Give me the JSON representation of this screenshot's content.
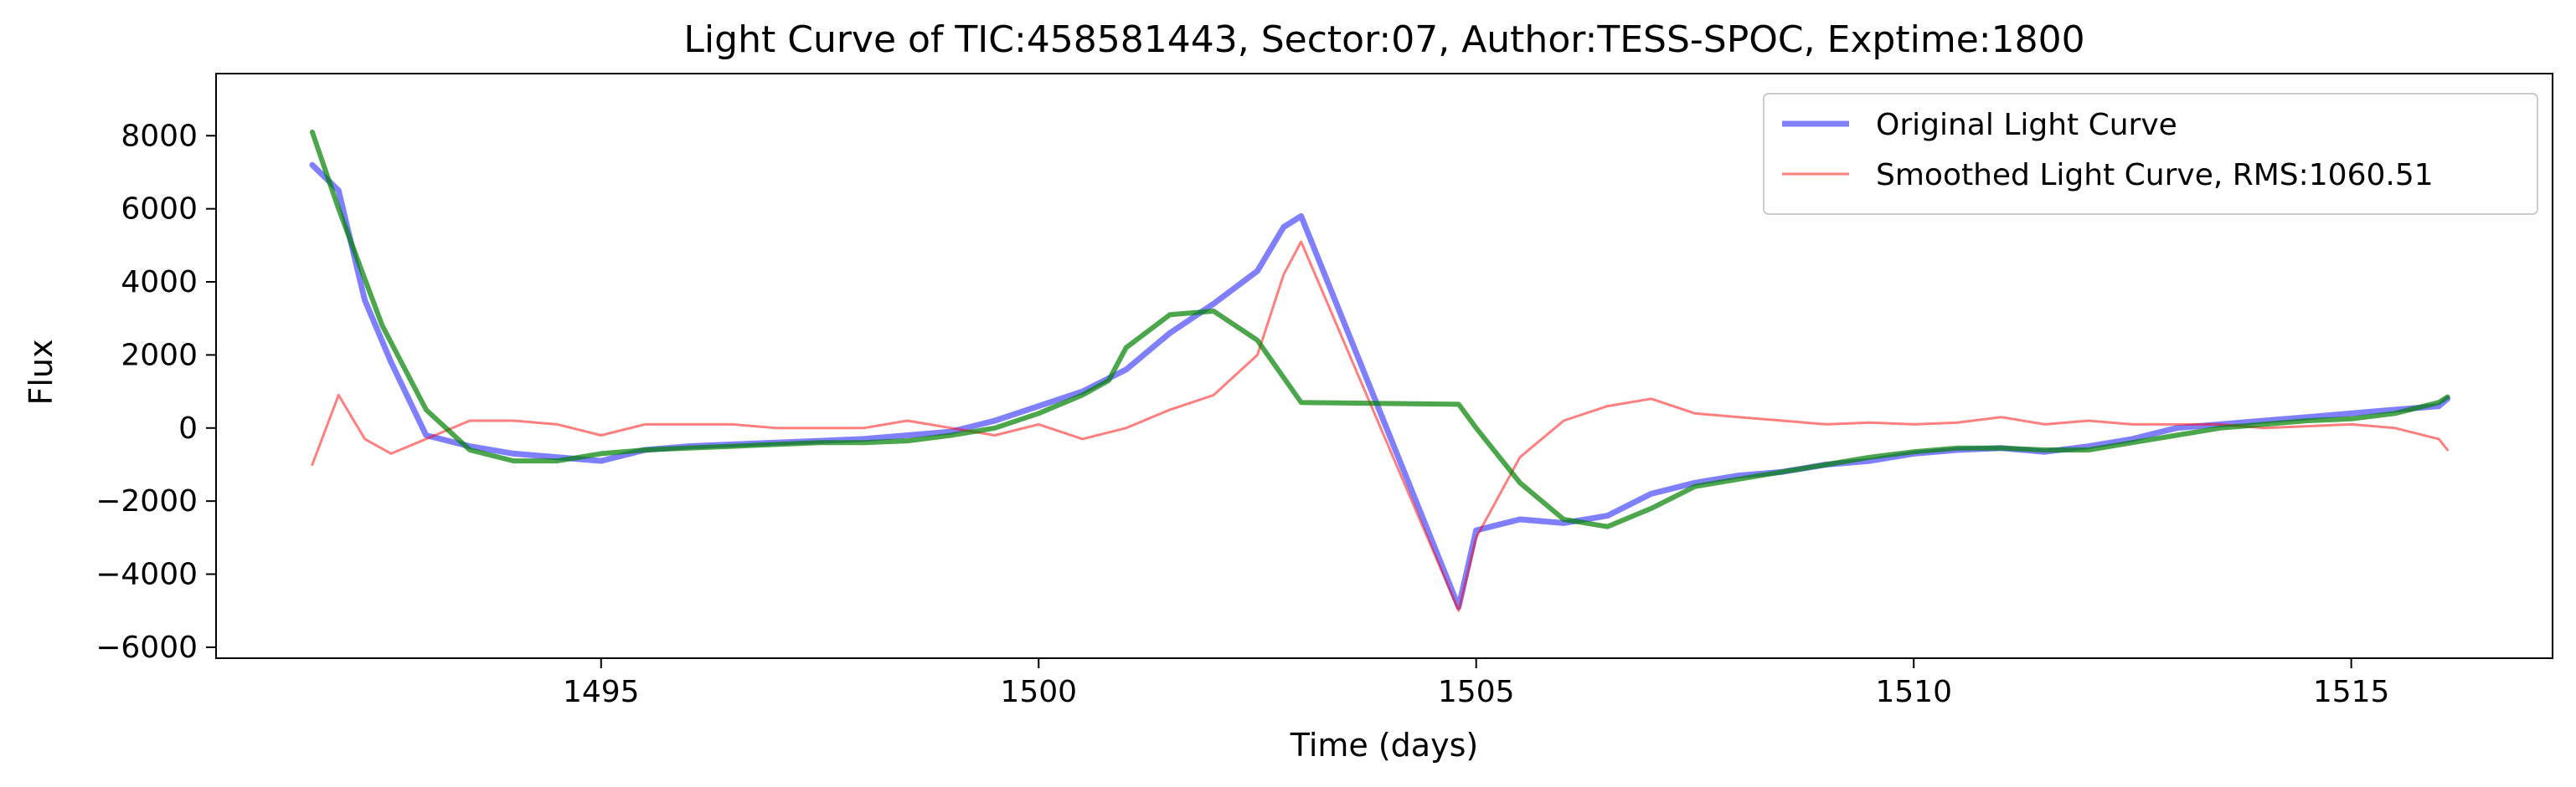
{
  "chart_data": {
    "type": "line",
    "title": "Light Curve of TIC:458581443, Sector:07, Author:TESS-SPOC, Exptime:1800",
    "xlabel": "Time (days)",
    "ylabel": "Flux",
    "xlim": [
      1490.6,
      1517.3
    ],
    "ylim": [
      -6300,
      9700
    ],
    "x_ticks": [
      1495,
      1500,
      1505,
      1510,
      1515
    ],
    "x_tick_labels": [
      "1495",
      "1500",
      "1505",
      "1510",
      "1515"
    ],
    "y_ticks": [
      -6000,
      -4000,
      -2000,
      0,
      2000,
      4000,
      6000,
      8000
    ],
    "y_tick_labels": [
      "−6000",
      "−4000",
      "−2000",
      "0",
      "2000",
      "4000",
      "6000",
      "8000"
    ],
    "grid": false,
    "legend_position": "top-right",
    "series": [
      {
        "name": "Original Light Curve",
        "color": "#0000ff",
        "opacity": 0.5,
        "style": "thick",
        "x": [
          1491.7,
          1492.0,
          1492.3,
          1492.6,
          1493.0,
          1493.5,
          1494.0,
          1494.5,
          1495.0,
          1495.5,
          1496.0,
          1496.5,
          1497.0,
          1497.5,
          1498.0,
          1498.5,
          1499.0,
          1499.5,
          1500.0,
          1500.5,
          1501.0,
          1501.5,
          1502.0,
          1502.5,
          1502.8,
          1503.0,
          1504.8,
          1505.0,
          1505.5,
          1506.0,
          1506.5,
          1507.0,
          1507.5,
          1508.0,
          1508.5,
          1509.0,
          1509.5,
          1510.0,
          1510.5,
          1511.0,
          1511.5,
          1512.0,
          1512.5,
          1513.0,
          1513.5,
          1514.0,
          1514.5,
          1515.0,
          1515.5,
          1516.0,
          1516.1
        ],
        "y": [
          7200,
          6500,
          3500,
          1800,
          -200,
          -500,
          -700,
          -800,
          -900,
          -600,
          -500,
          -450,
          -400,
          -350,
          -300,
          -200,
          -100,
          200,
          600,
          1000,
          1600,
          2600,
          3400,
          4300,
          5500,
          5800,
          -4900,
          -2800,
          -2500,
          -2600,
          -2400,
          -1800,
          -1500,
          -1300,
          -1200,
          -1000,
          -900,
          -700,
          -600,
          -550,
          -650,
          -500,
          -300,
          0,
          100,
          200,
          300,
          400,
          500,
          600,
          800
        ]
      },
      {
        "name": "Smoothed Light Curve, RMS:1060.51",
        "color": "#ff0000",
        "opacity": 0.5,
        "style": "thin",
        "x": [
          1491.7,
          1492.0,
          1492.3,
          1492.6,
          1493.0,
          1493.5,
          1494.0,
          1494.5,
          1495.0,
          1495.5,
          1496.0,
          1496.5,
          1497.0,
          1497.5,
          1498.0,
          1498.5,
          1499.0,
          1499.5,
          1500.0,
          1500.5,
          1501.0,
          1501.5,
          1502.0,
          1502.5,
          1502.8,
          1503.0,
          1504.8,
          1505.0,
          1505.5,
          1506.0,
          1506.5,
          1507.0,
          1507.5,
          1508.0,
          1508.5,
          1509.0,
          1509.5,
          1510.0,
          1510.5,
          1511.0,
          1511.5,
          1512.0,
          1512.5,
          1513.0,
          1513.5,
          1514.0,
          1514.5,
          1515.0,
          1515.5,
          1516.0,
          1516.1
        ],
        "y": [
          -1000,
          900,
          -300,
          -700,
          -300,
          200,
          200,
          100,
          -200,
          100,
          100,
          100,
          0,
          0,
          0,
          200,
          0,
          -200,
          100,
          -300,
          0,
          500,
          900,
          2000,
          4200,
          5100,
          -5000,
          -3000,
          -800,
          200,
          600,
          800,
          400,
          300,
          200,
          100,
          150,
          100,
          150,
          300,
          100,
          200,
          100,
          100,
          100,
          0,
          50,
          100,
          0,
          -300,
          -600
        ]
      },
      {
        "name": "",
        "color": "#008000",
        "opacity": 0.7,
        "style": "medium",
        "x": [
          1491.7,
          1492.0,
          1492.5,
          1493.0,
          1493.5,
          1494.0,
          1494.5,
          1495.0,
          1495.5,
          1496.0,
          1496.5,
          1497.0,
          1497.5,
          1498.0,
          1498.5,
          1499.0,
          1499.5,
          1500.0,
          1500.5,
          1500.8,
          1501.0,
          1501.5,
          1502.0,
          1502.5,
          1503.0,
          1504.8,
          1505.0,
          1505.5,
          1506.0,
          1506.5,
          1507.0,
          1507.5,
          1508.0,
          1508.5,
          1509.0,
          1509.5,
          1510.0,
          1510.5,
          1511.0,
          1511.5,
          1512.0,
          1512.5,
          1513.0,
          1513.5,
          1514.0,
          1514.5,
          1515.0,
          1515.5,
          1516.0,
          1516.1
        ],
        "y": [
          8100,
          6000,
          2800,
          500,
          -600,
          -900,
          -900,
          -700,
          -600,
          -550,
          -500,
          -450,
          -400,
          -400,
          -350,
          -200,
          0,
          400,
          900,
          1300,
          2200,
          3100,
          3200,
          2400,
          700,
          650,
          0,
          -1500,
          -2500,
          -2700,
          -2200,
          -1600,
          -1400,
          -1200,
          -1000,
          -800,
          -650,
          -550,
          -550,
          -600,
          -600,
          -400,
          -200,
          0,
          100,
          200,
          250,
          400,
          700,
          850
        ]
      }
    ]
  }
}
